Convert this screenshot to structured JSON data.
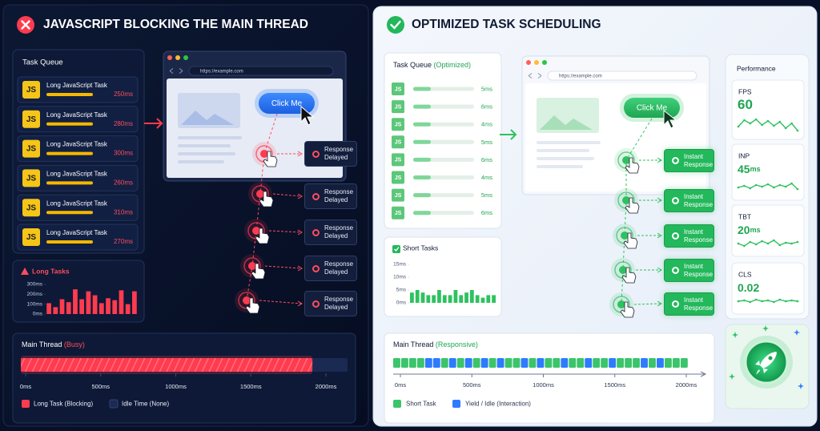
{
  "left": {
    "title": "JAVASCRIPT BLOCKING THE MAIN THREAD",
    "task_queue": {
      "title": "Task Queue",
      "tasks": [
        {
          "badge": "JS",
          "label": "Long JavaScript Task",
          "duration": "250ms"
        },
        {
          "badge": "JS",
          "label": "Long JavaScript Task",
          "duration": "280ms"
        },
        {
          "badge": "JS",
          "label": "Long JavaScript Task",
          "duration": "300ms"
        },
        {
          "badge": "JS",
          "label": "Long JavaScript Task",
          "duration": "260ms"
        },
        {
          "badge": "JS",
          "label": "Long JavaScript Task",
          "duration": "310ms"
        },
        {
          "badge": "JS",
          "label": "Long JavaScript Task",
          "duration": "270ms"
        }
      ]
    },
    "browser": {
      "url": "https://example.com",
      "button": "Click Me"
    },
    "responses": [
      "Response Delayed",
      "Response Delayed",
      "Response Delayed",
      "Response Delayed",
      "Response Delayed"
    ],
    "long_tasks": {
      "type": "bar",
      "title": "Long Tasks",
      "values": [
        110,
        70,
        150,
        120,
        250,
        150,
        230,
        190,
        110,
        160,
        140,
        240,
        100,
        230
      ],
      "ylim": [
        0,
        300
      ],
      "yticks": [
        {
          "value": 300,
          "label": "300ms"
        },
        {
          "value": 200,
          "label": "200ms"
        },
        {
          "value": 100,
          "label": "100ms"
        },
        {
          "value": 0,
          "label": "0ms"
        }
      ],
      "color": "#ff3b4f"
    },
    "main_thread": {
      "title": "Main Thread",
      "status": "(Busy)",
      "xlim": [
        0,
        2000
      ],
      "xticks": [
        {
          "value": 0,
          "label": "0ms"
        },
        {
          "value": 500,
          "label": "500ms"
        },
        {
          "value": 1000,
          "label": "1000ms"
        },
        {
          "value": 1500,
          "label": "1500ms"
        },
        {
          "value": 2000,
          "label": "2000ms"
        }
      ],
      "long_task": [
        0,
        1910
      ],
      "legend": [
        "Long Task (Blocking)",
        "Idle Time (None)"
      ]
    }
  },
  "right": {
    "title": "OPTIMIZED TASK SCHEDULING",
    "task_queue": {
      "title": "Task Queue",
      "status": "(Optimized)",
      "tasks": [
        {
          "badge": "JS",
          "duration": "5ms"
        },
        {
          "badge": "JS",
          "duration": "6ms"
        },
        {
          "badge": "JS",
          "duration": "4ms"
        },
        {
          "badge": "JS",
          "duration": "5ms"
        },
        {
          "badge": "JS",
          "duration": "6ms"
        },
        {
          "badge": "JS",
          "duration": "4ms"
        },
        {
          "badge": "JS",
          "duration": "5ms"
        },
        {
          "badge": "JS",
          "duration": "6ms"
        }
      ]
    },
    "browser": {
      "url": "https://example.com",
      "button": "Click Me"
    },
    "responses": [
      "Instant Response",
      "Instant Response",
      "Instant Response",
      "Instant Response",
      "Instant Response"
    ],
    "short_tasks": {
      "type": "bar",
      "title": "Short Tasks",
      "values": [
        4,
        5,
        4,
        3,
        3,
        5,
        3,
        3,
        5,
        3,
        4,
        5,
        3,
        2,
        3,
        3
      ],
      "ylim": [
        0,
        15
      ],
      "yticks": [
        {
          "value": 15,
          "label": "15ms"
        },
        {
          "value": 10,
          "label": "10ms"
        },
        {
          "value": 5,
          "label": "5ms"
        },
        {
          "value": 0,
          "label": "0ms"
        }
      ],
      "color": "#2ec25f"
    },
    "main_thread": {
      "title": "Main Thread",
      "status": "(Responsive)",
      "xlim": [
        0,
        2000
      ],
      "xticks": [
        {
          "value": 0,
          "label": "0ms"
        },
        {
          "value": 500,
          "label": "500ms"
        },
        {
          "value": 1000,
          "label": "1000ms"
        },
        {
          "value": 1500,
          "label": "1500ms"
        },
        {
          "value": 2000,
          "label": "2000ms"
        }
      ],
      "legend": [
        "Short Task",
        "Yield / Idle (Interaction)"
      ]
    },
    "performance": {
      "title": "Performance",
      "metrics": [
        {
          "label": "FPS",
          "value": 60
        },
        {
          "label": "INP",
          "value": 45,
          "unit": "ms"
        },
        {
          "label": "TBT",
          "value": 20,
          "unit": "ms"
        },
        {
          "label": "CLS",
          "value": 0.02
        }
      ]
    }
  }
}
